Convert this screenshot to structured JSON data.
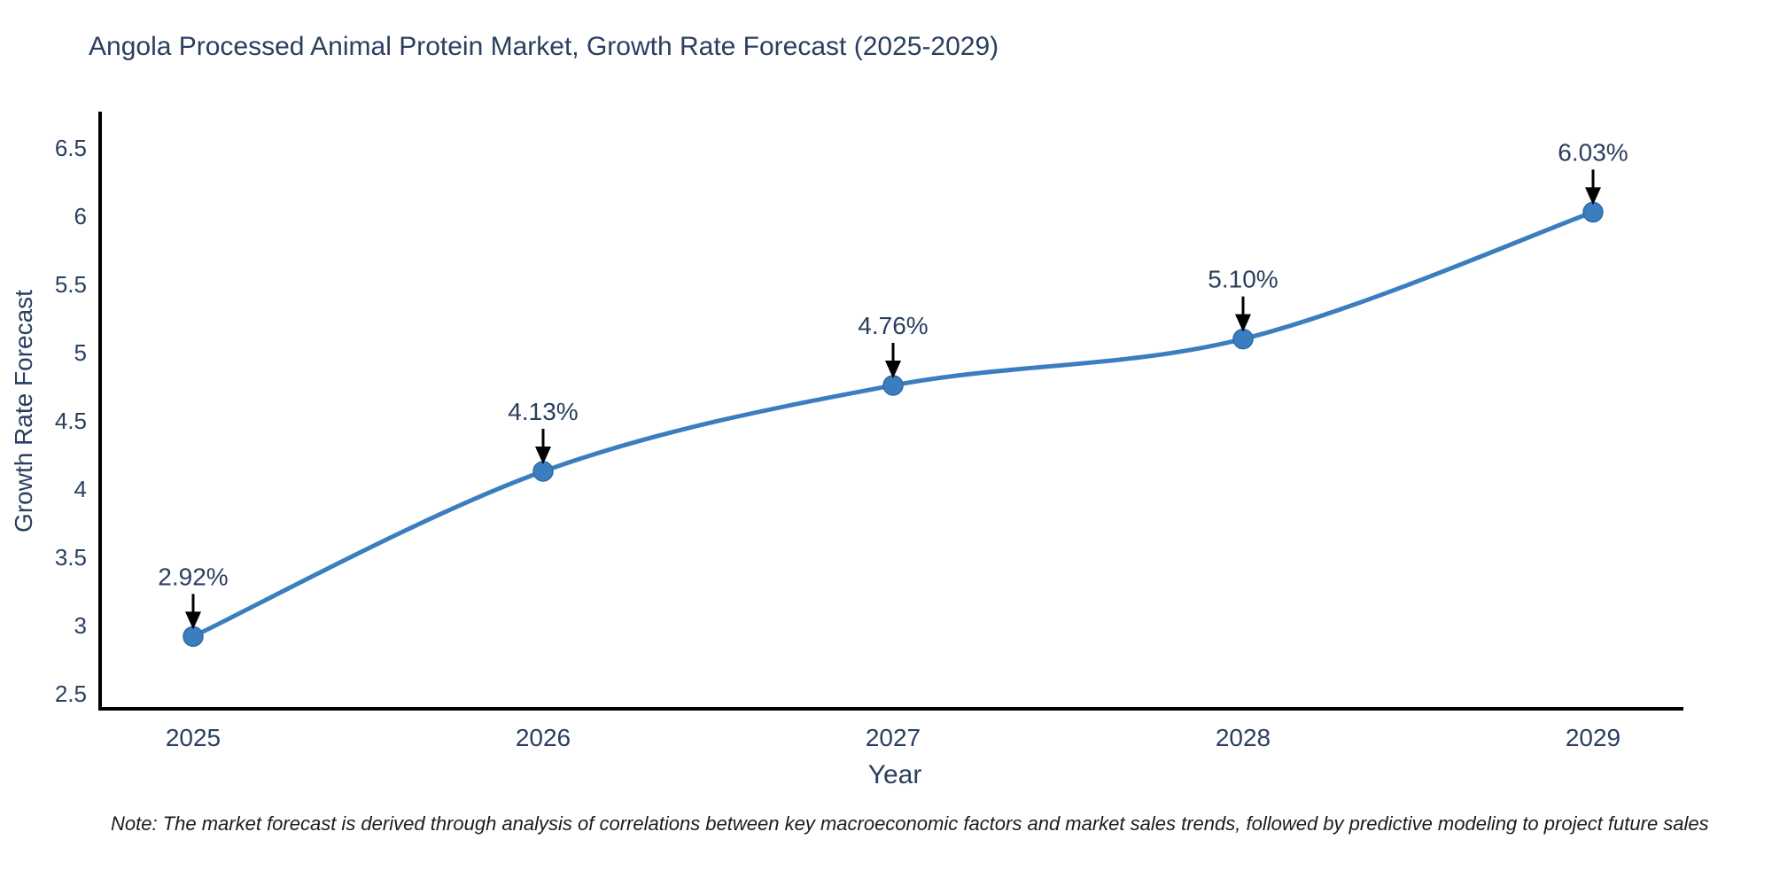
{
  "page": {
    "background": "#ffffff"
  },
  "chart_data": {
    "type": "line",
    "title": "Angola Processed Animal Protein Market, Growth Rate Forecast (2025-2029)",
    "xlabel": "Year",
    "ylabel": "Growth Rate Forecast",
    "x": [
      2025,
      2026,
      2027,
      2028,
      2029
    ],
    "values": [
      2.92,
      4.13,
      4.76,
      5.1,
      6.03
    ],
    "point_labels": [
      "2.92%",
      "4.13%",
      "4.76%",
      "5.10%",
      "6.03%"
    ],
    "xtick_labels": [
      "2025",
      "2026",
      "2027",
      "2028",
      "2029"
    ],
    "yticks": [
      2.5,
      3,
      3.5,
      4,
      4.5,
      5,
      5.5,
      6,
      6.5
    ],
    "ytick_labels": [
      "2.5",
      "3",
      "3.5",
      "4",
      "4.5",
      "5",
      "5.5",
      "6",
      "6.5"
    ],
    "ylim": [
      2.5,
      6.5
    ],
    "grid": false,
    "legend": "none",
    "curve": "spline",
    "line_color": "#3b7ec0",
    "marker_color": "#3b7ec0",
    "marker_edge_color": "#2e6ca4",
    "axis_color": "#000000",
    "text_color": "#2a3f5f",
    "annotation_arrow_color": "#000000"
  },
  "note": {
    "text": "Note: The market forecast is derived through analysis of correlations between key macroeconomic factors and market sales trends, followed by predictive modeling to project future sales"
  }
}
